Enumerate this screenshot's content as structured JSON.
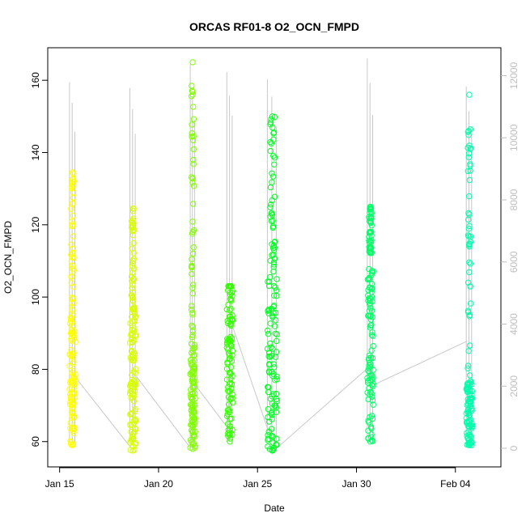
{
  "chart_data": {
    "type": "scatter",
    "title": "ORCAS RF01-8 O2_OCN_FMPD",
    "xlabel": "Date",
    "ylabel": "O2_OCN_FMPD",
    "x_ticks": [
      "Jan 15",
      "Jan 20",
      "Jan 25",
      "Jan 30",
      "Feb 04"
    ],
    "x_tick_days": [
      15,
      20,
      25,
      30,
      35
    ],
    "xlim_days": [
      14.4,
      37.3
    ],
    "y_ticks": [
      "60",
      "80",
      "100",
      "120",
      "140",
      "160"
    ],
    "ylim": [
      53,
      169
    ],
    "y2_ticks": [
      "0",
      "2000",
      "4000",
      "6000",
      "8000",
      "10000",
      "12000"
    ],
    "y2lim": [
      -600,
      12900
    ],
    "grid": false,
    "colors": {
      "axis": "#000000",
      "secondary": "#bebebe",
      "altitude_line": "#c8c8c8"
    },
    "flights": [
      {
        "id": "RF01",
        "color": "#ffff00",
        "start": 15.5,
        "end": 15.8,
        "ymin": 59,
        "ymax": 134.5,
        "lower_top": 95,
        "alt_max": 12050
      },
      {
        "id": "RF02",
        "color": "#d8ff00",
        "start": 18.55,
        "end": 18.85,
        "ymin": 57.5,
        "ymax": 124.5,
        "lower_top": 96,
        "alt_max": 12000
      },
      {
        "id": "RF03",
        "color": "#80ff00",
        "start": 21.6,
        "end": 21.85,
        "ymin": 58,
        "ymax": 165,
        "lower_top": 87,
        "alt_max": 12450
      },
      {
        "id": "RF04",
        "color": "#33ff00",
        "start": 23.45,
        "end": 23.75,
        "ymin": 60,
        "ymax": 103,
        "lower_top": 103,
        "alt_max": 12450
      },
      {
        "id": "RF05",
        "color": "#00ff22",
        "start": 25.5,
        "end": 26.0,
        "ymin": 57.5,
        "ymax": 150,
        "lower_top": 107,
        "alt_max": 12200
      },
      {
        "id": "RF06",
        "color": "#00ff66",
        "start": 30.55,
        "end": 30.85,
        "ymin": 60,
        "ymax": 125,
        "lower_top": 112,
        "alt_max": 12650
      },
      {
        "id": "RF07",
        "color": "#00ffaa",
        "start": 35.55,
        "end": 35.85,
        "ymin": 59,
        "ymax": 156,
        "lower_top": 77,
        "alt_max": 12000
      }
    ],
    "altitude_trace": [
      [
        15.6,
        2450
      ],
      [
        18.6,
        20
      ],
      [
        18.9,
        2300
      ],
      [
        21.6,
        20
      ],
      [
        21.9,
        2000
      ],
      [
        23.5,
        650
      ],
      [
        23.7,
        4000
      ],
      [
        25.5,
        650
      ],
      [
        26.0,
        20
      ],
      [
        30.6,
        2600
      ],
      [
        30.9,
        2050
      ],
      [
        35.6,
        3450
      ]
    ]
  }
}
